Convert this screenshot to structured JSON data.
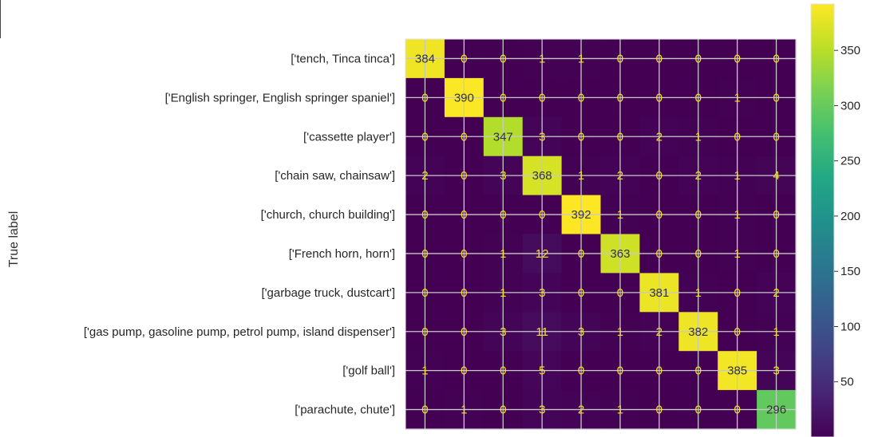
{
  "chart_data": {
    "type": "heatmap",
    "ylabel": "True label",
    "row_labels": [
      "['tench, Tinca tinca']",
      "['English springer, English springer spaniel']",
      "['cassette player']",
      "['chain saw, chainsaw']",
      "['church, church building']",
      "['French horn, horn']",
      "['garbage truck, dustcart']",
      "['gas pump, gasoline pump, petrol pump, island dispenser']",
      "['golf ball']",
      "['parachute, chute']"
    ],
    "matrix": [
      [
        384,
        0,
        0,
        1,
        1,
        0,
        0,
        0,
        0,
        0
      ],
      [
        0,
        390,
        0,
        0,
        0,
        0,
        0,
        0,
        1,
        0
      ],
      [
        0,
        0,
        347,
        3,
        0,
        0,
        2,
        1,
        0,
        0
      ],
      [
        2,
        0,
        3,
        368,
        1,
        2,
        0,
        2,
        1,
        4
      ],
      [
        0,
        0,
        0,
        0,
        392,
        1,
        0,
        0,
        1,
        0
      ],
      [
        0,
        0,
        1,
        12,
        0,
        363,
        0,
        0,
        1,
        0
      ],
      [
        0,
        0,
        1,
        3,
        0,
        0,
        381,
        1,
        0,
        2
      ],
      [
        0,
        0,
        3,
        11,
        3,
        1,
        2,
        382,
        0,
        1
      ],
      [
        1,
        0,
        0,
        5,
        0,
        0,
        0,
        0,
        385,
        3
      ],
      [
        0,
        1,
        0,
        3,
        2,
        1,
        0,
        0,
        0,
        296
      ]
    ],
    "colormap": "viridis",
    "colorbar": {
      "range": [
        0,
        392
      ],
      "ticks": [
        50,
        100,
        150,
        200,
        250,
        300,
        350
      ]
    },
    "grid": true
  },
  "colors": {
    "label_on_dark": "#f2e41a",
    "label_on_light": "#333333",
    "grid_line": "#c8c8c8"
  }
}
